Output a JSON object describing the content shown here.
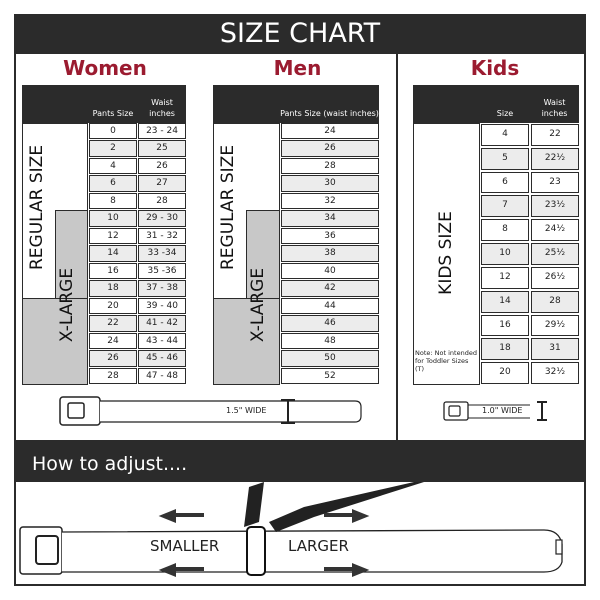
{
  "title": "SIZE CHART",
  "women": {
    "heading": "Women",
    "col_pants": "Pants Size",
    "col_waist": "Waist inches",
    "label_regular": "REGULAR SIZE",
    "label_xlarge": "X-LARGE",
    "rows": [
      [
        "0",
        "23 - 24"
      ],
      [
        "2",
        "25"
      ],
      [
        "4",
        "26"
      ],
      [
        "6",
        "27"
      ],
      [
        "8",
        "28"
      ],
      [
        "10",
        "29 - 30"
      ],
      [
        "12",
        "31 - 32"
      ],
      [
        "14",
        "33 -34"
      ],
      [
        "16",
        "35 -36"
      ],
      [
        "18",
        "37 - 38"
      ],
      [
        "20",
        "39 - 40"
      ],
      [
        "22",
        "41 - 42"
      ],
      [
        "24",
        "43 - 44"
      ],
      [
        "26",
        "45 - 46"
      ],
      [
        "28",
        "47 - 48"
      ]
    ]
  },
  "men": {
    "heading": "Men",
    "col_pants": "Pants Size (waist inches)",
    "label_regular": "REGULAR SIZE",
    "label_xlarge": "X-LARGE",
    "rows": [
      "24",
      "26",
      "28",
      "30",
      "32",
      "34",
      "36",
      "38",
      "40",
      "42",
      "44",
      "46",
      "48",
      "50",
      "52"
    ]
  },
  "kids": {
    "heading": "Kids",
    "col_size": "Size",
    "col_waist": "Waist inches",
    "label": "KIDS SIZE",
    "note": "Note: Not intended for Toddler Sizes (T)",
    "rows": [
      [
        "4",
        "22"
      ],
      [
        "5",
        "22½"
      ],
      [
        "6",
        "23"
      ],
      [
        "7",
        "23½"
      ],
      [
        "8",
        "24½"
      ],
      [
        "10",
        "25½"
      ],
      [
        "12",
        "26½"
      ],
      [
        "14",
        "28"
      ],
      [
        "16",
        "29½"
      ],
      [
        "18",
        "31"
      ],
      [
        "20",
        "32½"
      ]
    ]
  },
  "belts": {
    "adult_width": "1.5\" WIDE",
    "kids_width": "1.0\" WIDE"
  },
  "adjust": {
    "heading": "How to adjust....",
    "smaller": "SMALLER",
    "larger": "LARGER"
  },
  "colors": {
    "accent": "#9b1b30",
    "dark": "#2b2b2b",
    "xlarge_fill": "#c8c8c8"
  }
}
